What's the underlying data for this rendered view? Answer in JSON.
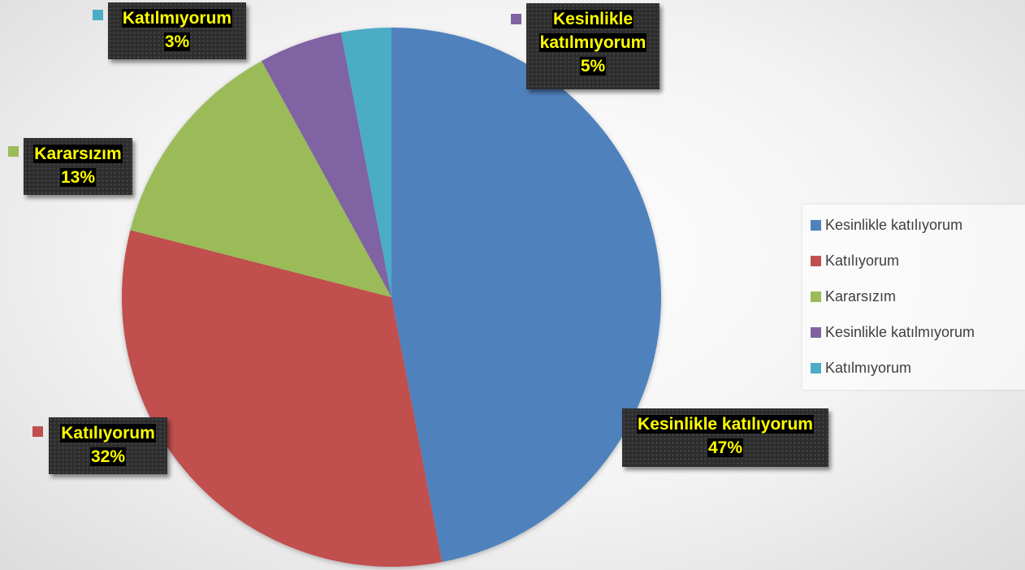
{
  "chart_data": {
    "type": "pie",
    "start_angle_deg": 0,
    "direction": "clockwise",
    "slices": [
      {
        "label": "Kesinlikle katılıyorum",
        "value": 47,
        "percent_label": "47%",
        "color": "#4f81bd"
      },
      {
        "label": "Katılıyorum",
        "value": 32,
        "percent_label": "32%",
        "color": "#c0504d"
      },
      {
        "label": "Kararsızım",
        "value": 13,
        "percent_label": "13%",
        "color": "#9bbb59"
      },
      {
        "label": "Kesinlikle katılmıyorum",
        "value": 5,
        "percent_label": "5%",
        "color": "#8064a2"
      },
      {
        "label": "Katılmıyorum",
        "value": 3,
        "percent_label": "3%",
        "color": "#4bacc6"
      }
    ],
    "data_labels": {
      "kesinlikle_katiliyorum": {
        "name": "Kesinlikle katılıyorum",
        "percent": "47%"
      },
      "katiliyorum": {
        "name": "Katılıyorum",
        "percent": "32%"
      },
      "kararsizim": {
        "name": "Kararsızım",
        "percent": "13%"
      },
      "kesinlikle_katilmiyorum": {
        "name_line1": "Kesinlikle",
        "name_line2": "katılmıyorum",
        "percent": "5%"
      },
      "katilmiyorum": {
        "name": "Katılmıyorum",
        "percent": "3%"
      }
    },
    "legend": {
      "position": "right",
      "items": [
        "Kesinlikle katılıyorum",
        "Katılıyorum",
        "Kararsızım",
        "Kesinlikle katılmıyorum",
        "Katılmıyorum"
      ]
    }
  }
}
